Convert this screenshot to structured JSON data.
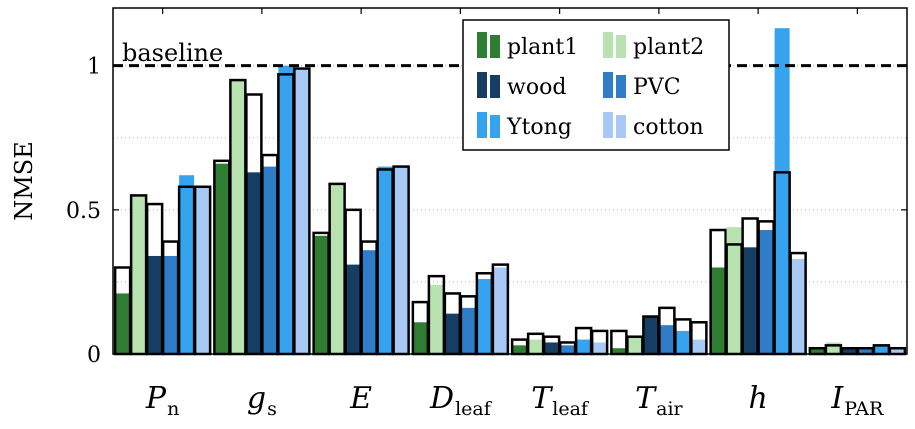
{
  "chart_data": {
    "type": "bar",
    "ylabel": "NMSE",
    "ylim": [
      0,
      1.2
    ],
    "yticks": [
      {
        "value": 0,
        "label": "0"
      },
      {
        "value": 0.5,
        "label": "0.5"
      },
      {
        "value": 1,
        "label": "1"
      }
    ],
    "grid": "horizontal-dotted",
    "baseline": {
      "value": 1,
      "label": "baseline"
    },
    "legend_position": "top-right",
    "categories": [
      {
        "main": "P",
        "sub": "n",
        "sub_italic": true
      },
      {
        "main": "g",
        "sub": "s",
        "sub_italic": true
      },
      {
        "main": "E",
        "sub": "",
        "sub_italic": false
      },
      {
        "main": "D",
        "sub": "leaf",
        "sub_italic": false
      },
      {
        "main": "T",
        "sub": "leaf",
        "sub_italic": false
      },
      {
        "main": "T",
        "sub": "air",
        "sub_italic": false
      },
      {
        "main": "h",
        "sub": "",
        "sub_italic": false
      },
      {
        "main": "I",
        "sub": "PAR",
        "sub_italic": false
      }
    ],
    "value_types": [
      "filled bar",
      "outlined bar"
    ],
    "series": [
      {
        "name": "plant1",
        "color": "#2e7d32",
        "values": [
          0.21,
          0.66,
          0.41,
          0.11,
          0.03,
          0.02,
          0.3,
          0.02
        ],
        "outline": [
          0.3,
          0.67,
          0.42,
          0.18,
          0.05,
          0.08,
          0.43,
          0.02
        ]
      },
      {
        "name": "plant2",
        "color": "#b8e2b0",
        "values": [
          0.55,
          0.95,
          0.59,
          0.24,
          0.05,
          0.06,
          0.44,
          0.04
        ],
        "outline": [
          0.55,
          0.95,
          0.59,
          0.27,
          0.07,
          0.06,
          0.38,
          0.03
        ]
      },
      {
        "name": "wood",
        "color": "#163d63",
        "values": [
          0.34,
          0.63,
          0.31,
          0.14,
          0.04,
          0.13,
          0.37,
          0.02
        ],
        "outline": [
          0.52,
          0.9,
          0.5,
          0.21,
          0.06,
          0.13,
          0.47,
          0.02
        ]
      },
      {
        "name": "PVC",
        "color": "#2f7cc8",
        "values": [
          0.34,
          0.65,
          0.36,
          0.16,
          0.03,
          0.1,
          0.43,
          0.02
        ],
        "outline": [
          0.39,
          0.69,
          0.39,
          0.2,
          0.04,
          0.16,
          0.46,
          0.02
        ]
      },
      {
        "name": "Ytong",
        "color": "#35a3f0",
        "values": [
          0.62,
          1.0,
          0.65,
          0.26,
          0.05,
          0.08,
          1.13,
          0.03
        ],
        "outline": [
          0.58,
          0.97,
          0.64,
          0.28,
          0.09,
          0.12,
          0.63,
          0.03
        ]
      },
      {
        "name": "cotton",
        "color": "#a8c9f5",
        "values": [
          0.58,
          0.99,
          0.65,
          0.3,
          0.04,
          0.05,
          0.33,
          0.02
        ],
        "outline": [
          0.58,
          0.99,
          0.65,
          0.31,
          0.08,
          0.11,
          0.35,
          0.02
        ]
      }
    ]
  }
}
